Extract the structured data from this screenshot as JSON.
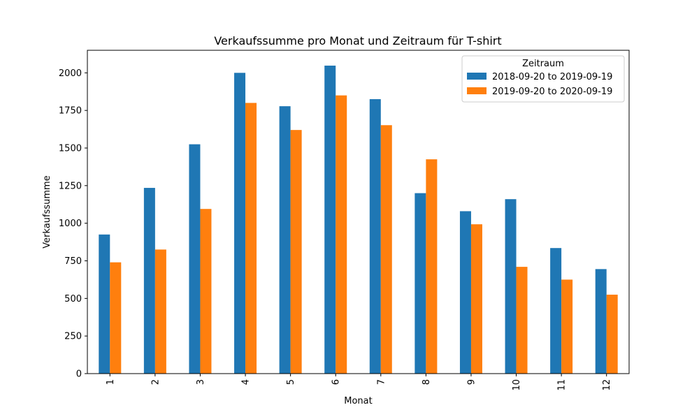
{
  "chart_data": {
    "type": "bar",
    "title": "Verkaufssumme pro Monat und Zeitraum für T-shirt",
    "xlabel": "Monat",
    "ylabel": "Verkaufssumme",
    "categories": [
      "1",
      "2",
      "3",
      "4",
      "5",
      "6",
      "7",
      "8",
      "9",
      "10",
      "11",
      "12"
    ],
    "yticks": [
      0,
      250,
      500,
      750,
      1000,
      1250,
      1500,
      1750,
      2000
    ],
    "ylim": [
      0,
      2150
    ],
    "grid": false,
    "legend": {
      "title": "Zeitraum",
      "placement": "top-right"
    },
    "series": [
      {
        "name": "2018-09-20 to 2019-09-19",
        "color": "#1f77b4",
        "values": [
          925,
          1235,
          1525,
          2000,
          1778,
          2048,
          1825,
          1200,
          1080,
          1160,
          835,
          695
        ]
      },
      {
        "name": "2019-09-20 to 2020-09-19",
        "color": "#ff7f0e",
        "values": [
          740,
          825,
          1095,
          1800,
          1620,
          1850,
          1652,
          1425,
          993,
          710,
          625,
          525
        ]
      }
    ]
  }
}
